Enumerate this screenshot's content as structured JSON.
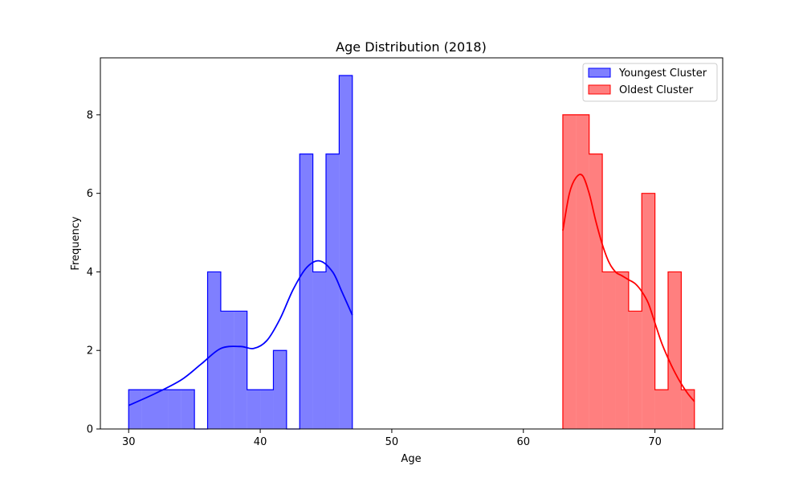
{
  "chart_data": {
    "type": "histogram",
    "title": "Age Distribution (2018)",
    "xlabel": "Age",
    "ylabel": "Frequency",
    "xlim": [
      27.85,
      75.15
    ],
    "ylim": [
      0,
      9.45
    ],
    "xticks": [
      30,
      40,
      50,
      60,
      70
    ],
    "yticks": [
      0,
      2,
      4,
      6,
      8
    ],
    "grid": false,
    "legend_position": "top-right",
    "series": [
      {
        "name": "Youngest Cluster",
        "color": "#0000ff",
        "fill": "#8080ff",
        "bin_edges": [
          30,
          31,
          32,
          33,
          34,
          35,
          36,
          37,
          38,
          39,
          40,
          41,
          42,
          43,
          44,
          45,
          46,
          47
        ],
        "counts": [
          1,
          1,
          1,
          1,
          1,
          0,
          4,
          3,
          3,
          1,
          1,
          2,
          0,
          7,
          4,
          7,
          9
        ],
        "kde": [
          [
            30,
            0.6
          ],
          [
            32,
            0.9
          ],
          [
            34,
            1.25
          ],
          [
            35.5,
            1.65
          ],
          [
            37,
            2.05
          ],
          [
            38.5,
            2.1
          ],
          [
            39.5,
            2.05
          ],
          [
            40.5,
            2.25
          ],
          [
            41.5,
            2.8
          ],
          [
            42.5,
            3.55
          ],
          [
            43.5,
            4.1
          ],
          [
            44.5,
            4.28
          ],
          [
            45.5,
            4.0
          ],
          [
            46.2,
            3.5
          ],
          [
            47,
            2.9
          ]
        ]
      },
      {
        "name": "Oldest Cluster",
        "color": "#ff0000",
        "fill": "#ff8080",
        "bin_edges": [
          63,
          64,
          65,
          66,
          67,
          68,
          69,
          70,
          71,
          72,
          73
        ],
        "counts": [
          8,
          8,
          7,
          4,
          4,
          3,
          6,
          1,
          4,
          1
        ],
        "kde": [
          [
            63,
            5.05
          ],
          [
            63.5,
            6.0
          ],
          [
            64,
            6.4
          ],
          [
            64.5,
            6.45
          ],
          [
            65,
            6.0
          ],
          [
            65.5,
            5.3
          ],
          [
            66,
            4.7
          ],
          [
            66.5,
            4.25
          ],
          [
            67,
            4.0
          ],
          [
            67.5,
            3.9
          ],
          [
            68,
            3.8
          ],
          [
            68.5,
            3.7
          ],
          [
            69,
            3.5
          ],
          [
            69.5,
            3.2
          ],
          [
            70,
            2.7
          ],
          [
            70.5,
            2.2
          ],
          [
            71,
            1.8
          ],
          [
            71.5,
            1.45
          ],
          [
            72,
            1.15
          ],
          [
            72.5,
            0.9
          ],
          [
            73,
            0.7
          ]
        ]
      }
    ]
  }
}
